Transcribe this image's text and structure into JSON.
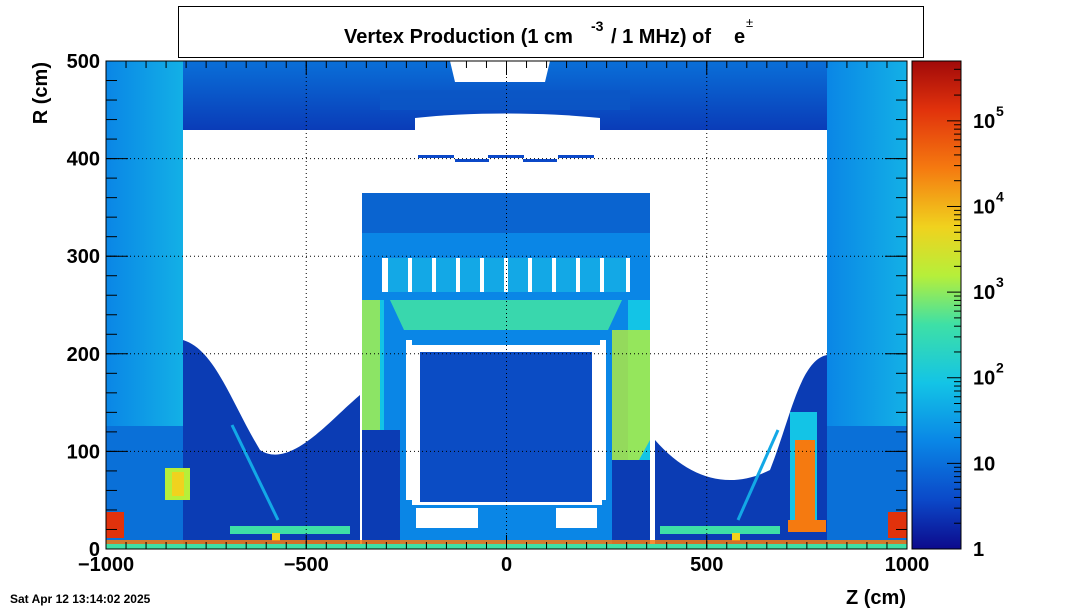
{
  "title": {
    "main": "Vertex Production (1 cm",
    "sup": "-3",
    "rest": "/ 1 MHz) of",
    "particle": "e",
    "particle_sup": "±"
  },
  "timestamp": "Sat Apr 12 13:14:02 2025",
  "colors": {
    "palette": [
      "#0d0a8c",
      "#0b48c8",
      "#0a86e6",
      "#13c4e6",
      "#3ee0a6",
      "#b6ef3a",
      "#f0d21e",
      "#f57a10",
      "#e1320c",
      "#a10a0a"
    ],
    "background_region": "#ffffff"
  },
  "chart_data": {
    "type": "heatmap",
    "title": "Vertex Production (1 cm-3 / 1 MHz) of e±",
    "xlabel": "Z (cm)",
    "ylabel": "R (cm)",
    "xlim": [
      -1000,
      1000
    ],
    "ylim": [
      0,
      500
    ],
    "x_ticks": [
      -1000,
      -500,
      0,
      500,
      1000
    ],
    "y_ticks": [
      0,
      100,
      200,
      300,
      400,
      500
    ],
    "x_tick_labels": [
      "−1000",
      "−500",
      "0",
      "500",
      "1000"
    ],
    "y_tick_labels": [
      "0",
      "100",
      "200",
      "300",
      "400",
      "500"
    ],
    "grid": true,
    "colorbar": {
      "scale": "log",
      "range": [
        1,
        500000
      ],
      "tick_values": [
        1,
        10,
        100,
        1000,
        10000,
        100000
      ],
      "tick_labels": [
        {
          "base": "1",
          "exp": ""
        },
        {
          "base": "10",
          "exp": ""
        },
        {
          "base": "10",
          "exp": "2"
        },
        {
          "base": "10",
          "exp": "3"
        },
        {
          "base": "10",
          "exp": "4"
        },
        {
          "base": "10",
          "exp": "5"
        }
      ]
    }
  }
}
